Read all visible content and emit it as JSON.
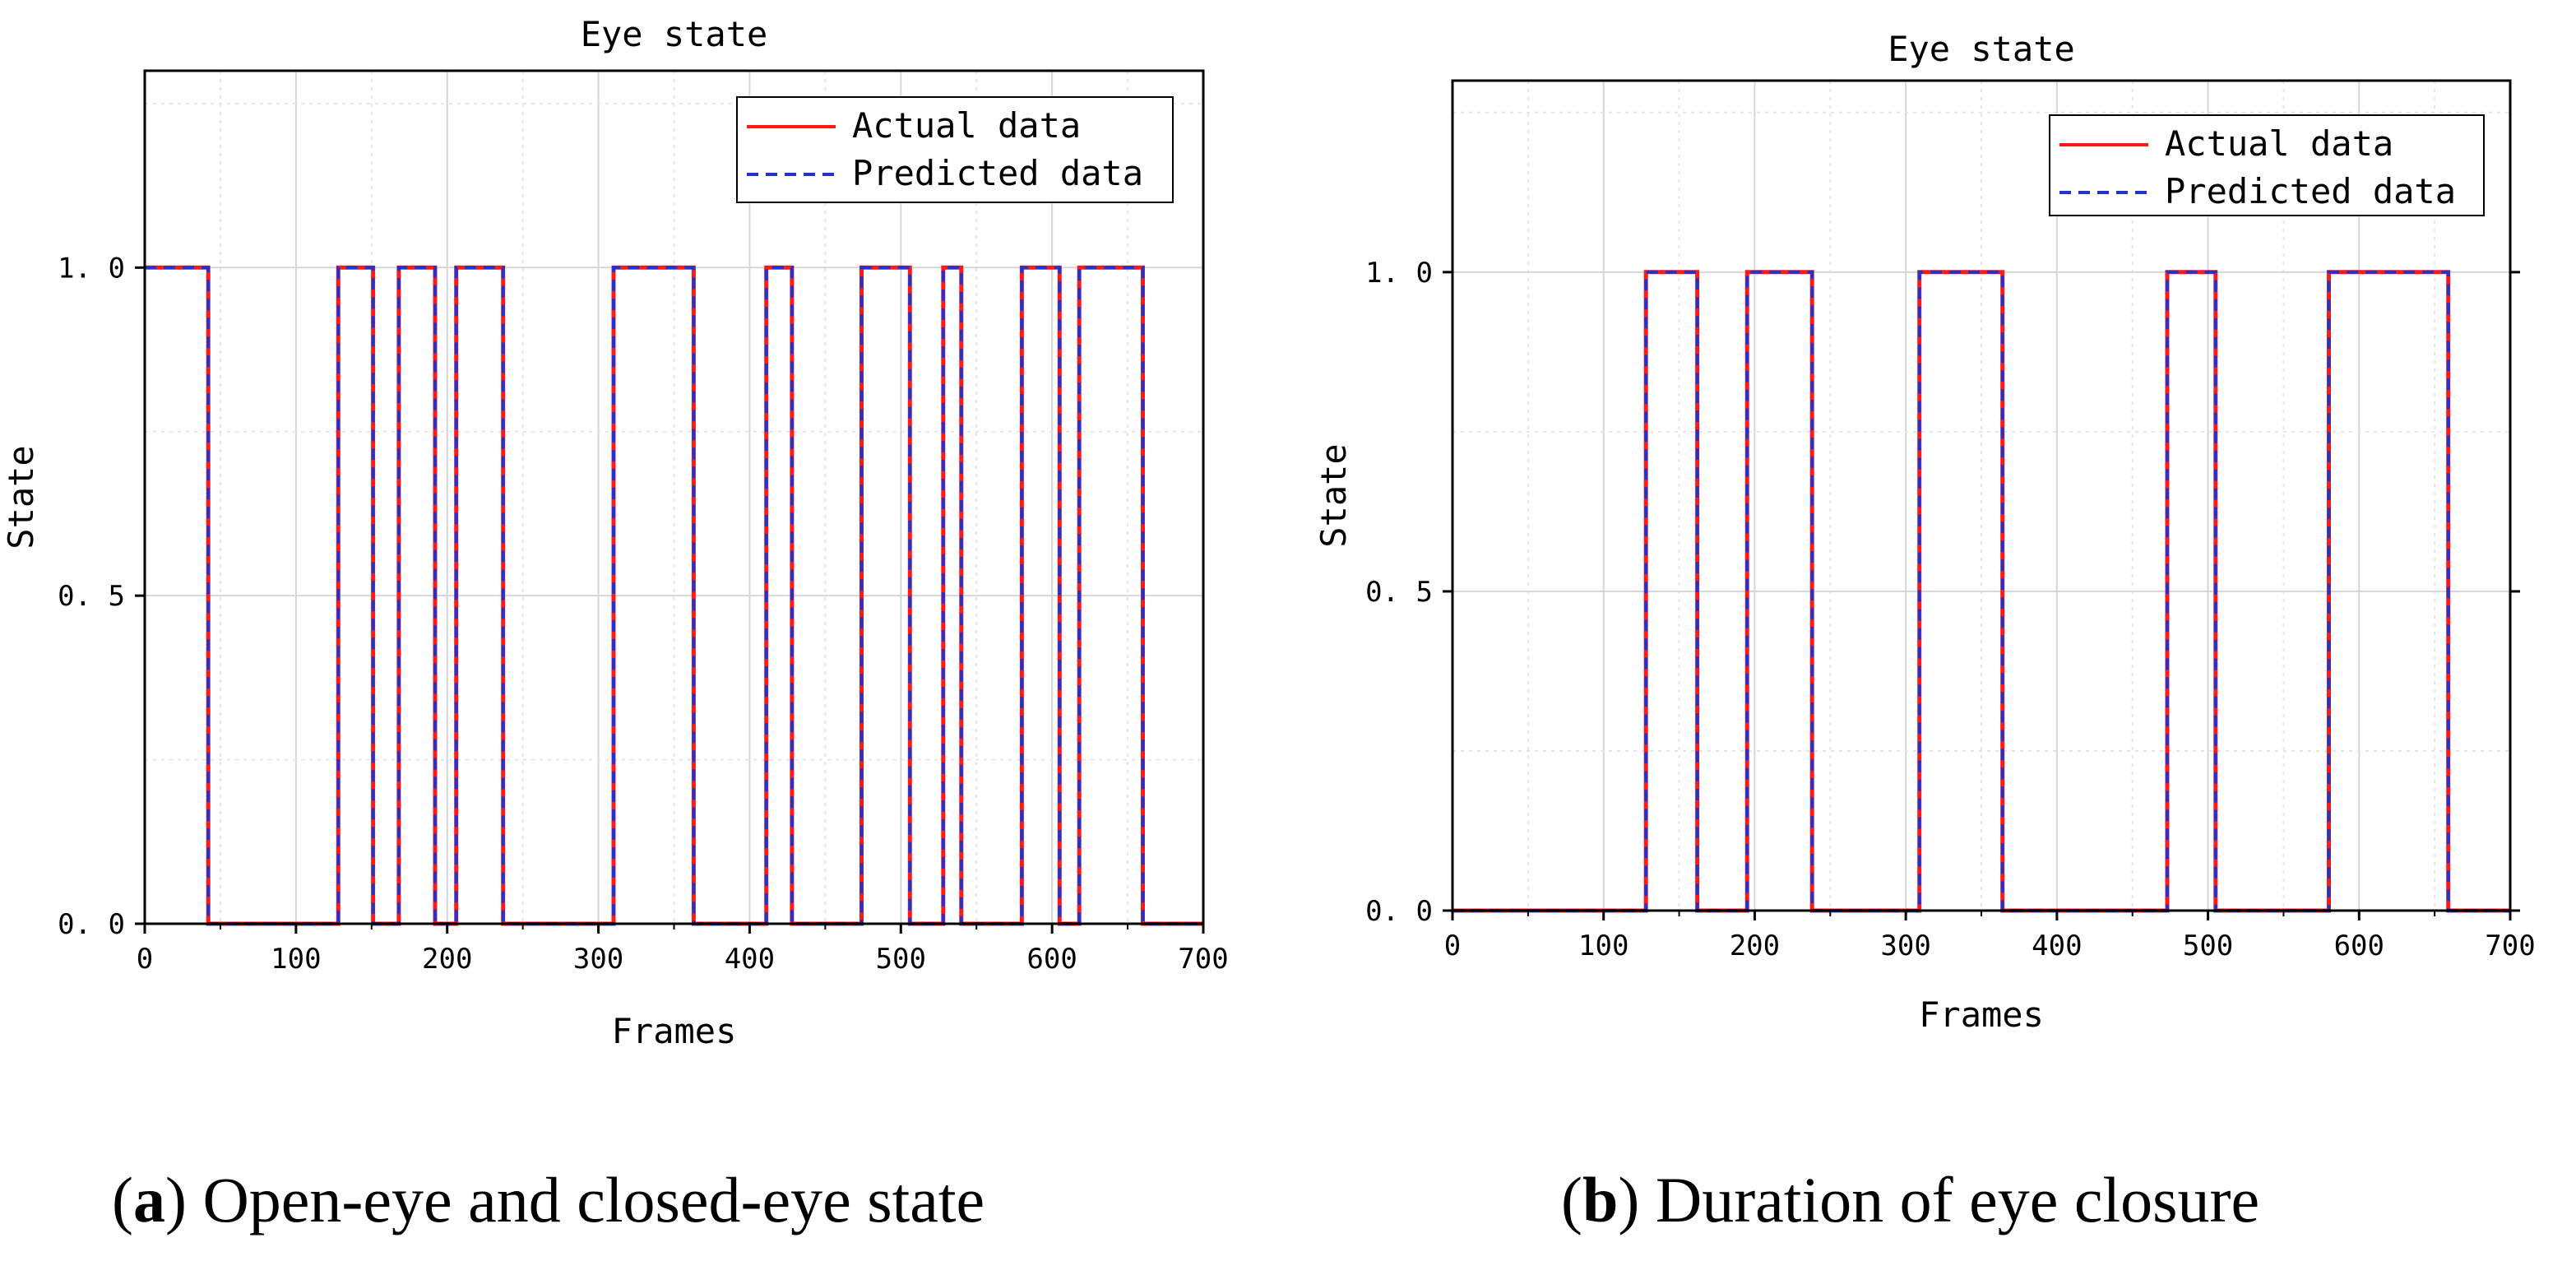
{
  "chart_data": [
    {
      "type": "line",
      "subtype": "step",
      "title": "Eye state",
      "xlabel": "Frames",
      "ylabel": "State",
      "xlim": [
        0,
        700
      ],
      "ylim": [
        0,
        1.3
      ],
      "xticks": [
        0,
        100,
        200,
        300,
        400,
        500,
        600,
        700
      ],
      "xtick_labels": [
        "0",
        "100",
        "200",
        "300",
        "400",
        "500",
        "600",
        "700"
      ],
      "yticks": [
        0,
        0.5,
        1
      ],
      "ytick_labels": [
        "0. 0",
        "0. 5",
        "1. 0"
      ],
      "grid": true,
      "legend_position": "top-right",
      "series": [
        {
          "name": "Actual data",
          "color": "#ff1a1a",
          "dash": "solid",
          "x": [
            0,
            42,
            42,
            128,
            128,
            151,
            151,
            168,
            168,
            192,
            192,
            206,
            206,
            237,
            237,
            310,
            310,
            363,
            363,
            411,
            411,
            428,
            428,
            474,
            474,
            506,
            506,
            528,
            528,
            540,
            540,
            580,
            580,
            605,
            605,
            618,
            618,
            660,
            660,
            700
          ],
          "y": [
            1,
            1,
            0,
            0,
            1,
            1,
            0,
            0,
            1,
            1,
            0,
            0,
            1,
            1,
            0,
            0,
            1,
            1,
            0,
            0,
            1,
            1,
            0,
            0,
            1,
            1,
            0,
            0,
            1,
            1,
            0,
            0,
            1,
            1,
            0,
            0,
            1,
            1,
            0,
            0
          ]
        },
        {
          "name": "Predicted data",
          "color": "#2233cc",
          "dash": "dashed",
          "x": [
            0,
            42,
            42,
            128,
            128,
            151,
            151,
            168,
            168,
            192,
            192,
            206,
            206,
            237,
            237,
            310,
            310,
            363,
            363,
            411,
            411,
            428,
            428,
            474,
            474,
            506,
            506,
            528,
            528,
            540,
            540,
            580,
            580,
            605,
            605,
            618,
            618,
            660,
            660,
            700
          ],
          "y": [
            1,
            1,
            0,
            0,
            1,
            1,
            0,
            0,
            1,
            1,
            0,
            0,
            1,
            1,
            0,
            0,
            1,
            1,
            0,
            0,
            1,
            1,
            0,
            0,
            1,
            1,
            0,
            0,
            1,
            1,
            0,
            0,
            1,
            1,
            0,
            0,
            1,
            1,
            0,
            0
          ]
        }
      ]
    },
    {
      "type": "line",
      "subtype": "step",
      "title": "Eye state",
      "xlabel": "Frames",
      "ylabel": "State",
      "xlim": [
        0,
        700
      ],
      "ylim": [
        0,
        1.3
      ],
      "xticks": [
        0,
        100,
        200,
        300,
        400,
        500,
        600,
        700
      ],
      "xtick_labels": [
        "0",
        "100",
        "200",
        "300",
        "400",
        "500",
        "600",
        "700"
      ],
      "yticks": [
        0,
        0.5,
        1
      ],
      "ytick_labels": [
        "0. 0",
        "0. 5",
        "1. 0"
      ],
      "grid": true,
      "legend_position": "top-right",
      "series": [
        {
          "name": "Actual data",
          "color": "#ff1a1a",
          "dash": "solid",
          "x": [
            0,
            128,
            128,
            162,
            162,
            195,
            195,
            238,
            238,
            309,
            309,
            364,
            364,
            473,
            473,
            505,
            505,
            580,
            580,
            659,
            659,
            700
          ],
          "y": [
            0,
            0,
            1,
            1,
            0,
            0,
            1,
            1,
            0,
            0,
            1,
            1,
            0,
            0,
            1,
            1,
            0,
            0,
            1,
            1,
            0,
            0
          ]
        },
        {
          "name": "Predicted data",
          "color": "#2233cc",
          "dash": "dashed",
          "x": [
            0,
            128,
            128,
            162,
            162,
            195,
            195,
            238,
            238,
            309,
            309,
            364,
            364,
            473,
            473,
            505,
            505,
            580,
            580,
            659,
            659,
            700
          ],
          "y": [
            0,
            0,
            1,
            1,
            0,
            0,
            1,
            1,
            0,
            0,
            1,
            1,
            0,
            0,
            1,
            1,
            0,
            0,
            1,
            1,
            0,
            0
          ]
        }
      ]
    }
  ],
  "captions": [
    {
      "letter": "a",
      "text": "Open-eye and closed-eye state"
    },
    {
      "letter": "b",
      "text": "Duration of eye closure"
    }
  ]
}
